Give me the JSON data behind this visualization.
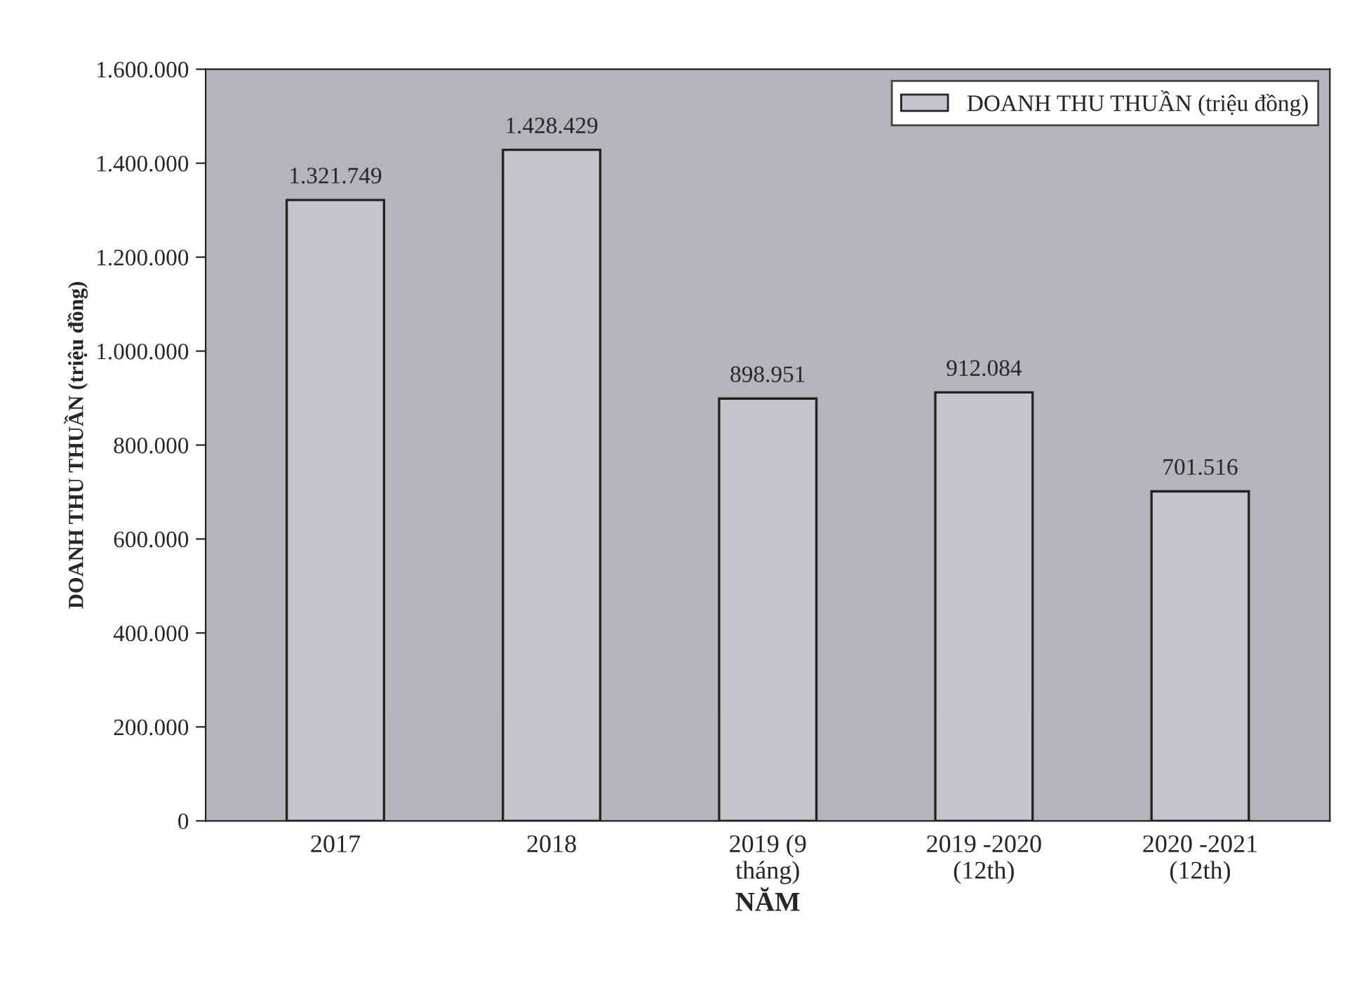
{
  "chart_data": {
    "type": "bar",
    "categories": [
      "2017",
      "2018",
      "2019 (9\ntháng)",
      "2019 -2020\n(12th)",
      "2020 -2021\n(12th)"
    ],
    "series": [
      {
        "name": "DOANH THU THUẦN (triệu đồng)",
        "color": "#c4c4cc",
        "values": [
          1321749,
          1428429,
          898951,
          912084,
          701516
        ],
        "value_labels": [
          "1.321.749",
          "1.428.429",
          "898.951",
          "912.084",
          "701.516"
        ]
      }
    ],
    "xlabel": "NĂM",
    "ylabel": "DOANH THU THUẦN (triệu đồng)",
    "ylim": [
      0,
      1600000
    ],
    "yticks": [
      {
        "value": 0,
        "label": "0"
      },
      {
        "value": 200000,
        "label": "200.000"
      },
      {
        "value": 400000,
        "label": "400.000"
      },
      {
        "value": 600000,
        "label": "600.000"
      },
      {
        "value": 800000,
        "label": "800.000"
      },
      {
        "value": 1000000,
        "label": "1.000.000"
      },
      {
        "value": 1200000,
        "label": "1.200.000"
      },
      {
        "value": 1400000,
        "label": "1.400.000"
      },
      {
        "value": 1600000,
        "label": "1.600.000"
      }
    ],
    "legend": "top right",
    "grid": false
  }
}
